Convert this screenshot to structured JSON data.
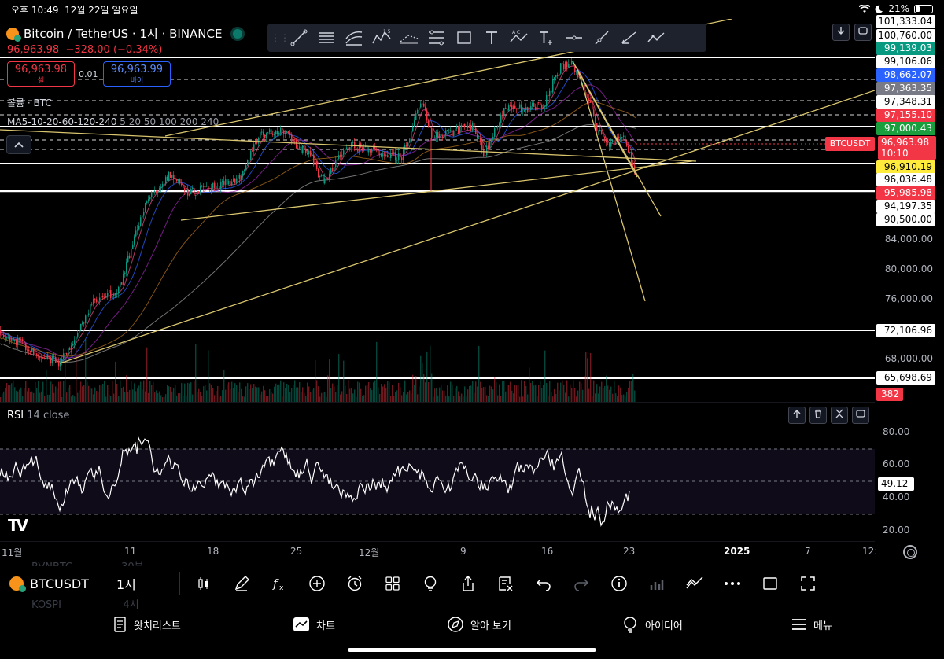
{
  "status_bar": {
    "time": "오후 10:49",
    "date": "12월 22일 일요일",
    "battery": "21%"
  },
  "symbol": {
    "title": "Bitcoin / TetherUS · 1시 · BINANCE",
    "price": "96,963.98",
    "change": "−328.00 (−0.34%)"
  },
  "trade": {
    "sell_price": "96,963.98",
    "sell_label": "셀",
    "buy_price": "96,963.99",
    "buy_label": "바이",
    "spread": "0.01"
  },
  "legend": {
    "volume": "볼륨 · BTC",
    "ma_name": "MA5-10-20-60-120-240",
    "ma_params": "5 20 50 100 200 240"
  },
  "price_labels": [
    {
      "text": "101,333.04",
      "bg": "#ffffff",
      "fg": "#000000"
    },
    {
      "text": "100,760.00",
      "bg": "#ffffff",
      "fg": "#000000"
    },
    {
      "text": "99,139.03",
      "bg": "#089981",
      "fg": "#ffffff"
    },
    {
      "text": "99,106.06",
      "bg": "#ffffff",
      "fg": "#000000"
    },
    {
      "text": "98,662.07",
      "bg": "#2962ff",
      "fg": "#ffffff"
    },
    {
      "text": "97,363.35",
      "bg": "#787b86",
      "fg": "#ffffff"
    },
    {
      "text": "97,348.31",
      "bg": "#ffffff",
      "fg": "#000000"
    },
    {
      "text": "97,155.10",
      "bg": "#f23645",
      "fg": "#ffffff"
    },
    {
      "text": "97,000.43",
      "bg": "#1b9e3e",
      "fg": "#ffffff"
    },
    {
      "text": "96,910.19",
      "bg": "#ffeb3b",
      "fg": "#000000"
    },
    {
      "text": "96,036.48",
      "bg": "#ffffff",
      "fg": "#000000"
    },
    {
      "text": "95,985.98",
      "bg": "#f23645",
      "fg": "#ffffff"
    },
    {
      "text": "94,197.35",
      "bg": "#ffffff",
      "fg": "#000000"
    },
    {
      "text": "90,500.00",
      "bg": "#ffffff",
      "fg": "#000000"
    },
    {
      "text": "72,106.96",
      "bg": "#ffffff",
      "fg": "#000000"
    },
    {
      "text": "65,698.69",
      "bg": "#ffffff",
      "fg": "#000000"
    },
    {
      "text": "382",
      "bg": "#f23645",
      "fg": "#ffffff"
    }
  ],
  "current_price": {
    "tag": "BTCUSDT",
    "price": "96,963.98",
    "countdown": "10:10"
  },
  "price_axis": [
    "84,000.00",
    "80,000.00",
    "76,000.00",
    "68,000.00"
  ],
  "rsi": {
    "name": "RSI",
    "params": "14 close",
    "value": "49.12",
    "axis": [
      "80.00",
      "60.00",
      "40.00",
      "20.00"
    ]
  },
  "time_axis": [
    "11월",
    "11",
    "18",
    "25",
    "12월",
    "9",
    "16",
    "23",
    "2025",
    "7",
    "12:"
  ],
  "watch_ghost": {
    "row1": "RVNBTC",
    "row1b": "30분",
    "row2": "KOSPI",
    "row2b": "4시"
  },
  "bottom_toolbar": {
    "symbol": "BTCUSDT",
    "interval": "1시"
  },
  "bottom_nav": {
    "watchlist": "왓치리스트",
    "chart": "차트",
    "explore": "알아 보기",
    "ideas": "아이디어",
    "menu": "메뉴"
  },
  "colors": {
    "up": "#089981",
    "down": "#f23645",
    "trendline": "#d9c56e",
    "rsi_band": "#7e57c2"
  }
}
